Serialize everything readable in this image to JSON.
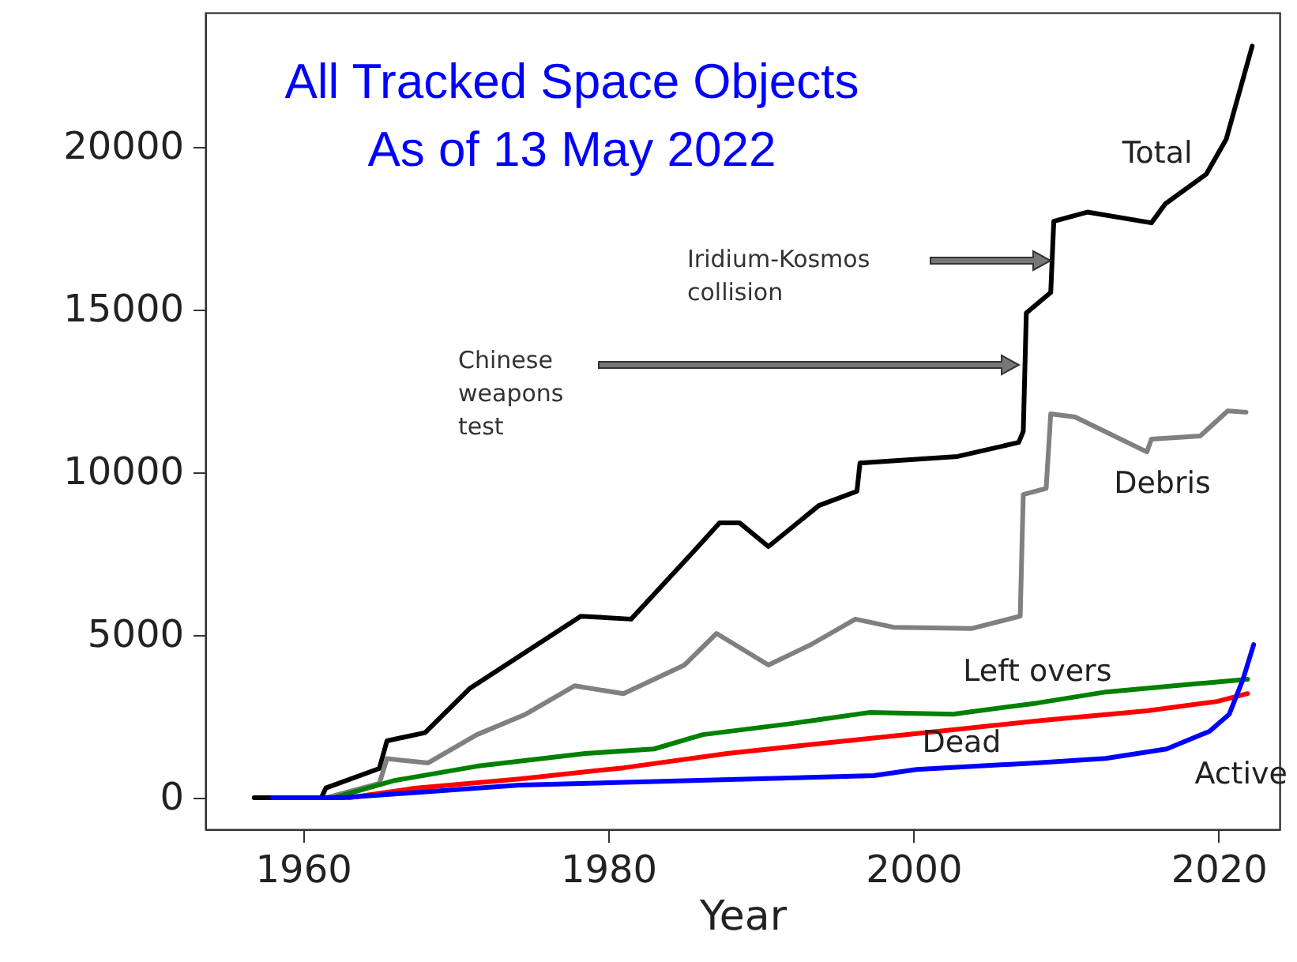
{
  "chart_data": {
    "type": "line",
    "title": "All Tracked Space Objects",
    "subtitle": "As of 13 May 2022",
    "xlabel": "Year",
    "xlim": [
      1953.6,
      2024.0
    ],
    "ylim": [
      -970,
      24130
    ],
    "xticks": [
      1960,
      1980,
      2000,
      2020
    ],
    "yticks": [
      0,
      5000,
      10000,
      15000,
      20000
    ],
    "grid": false,
    "legend": false,
    "series": [
      {
        "name": "Total",
        "color": "#000000",
        "x": [
          1956.8,
          1961.2,
          1961.5,
          1965,
          1965.5,
          1968,
          1970.9,
          1978.2,
          1981.5,
          1985.5,
          1987.3,
          1988.6,
          1990.5,
          1993.8,
          1996.3,
          1996.5,
          2002.9,
          2006.9,
          2007.2,
          2007.4,
          2009.0,
          2009.2,
          2011.4,
          2015.6,
          2016.5,
          2019.2,
          2020.5,
          2022.2
        ],
        "values": [
          0,
          0,
          300,
          900,
          1750,
          2000,
          3350,
          5580,
          5490,
          7520,
          8450,
          8450,
          7720,
          8980,
          9420,
          10290,
          10490,
          10920,
          11260,
          14900,
          15530,
          17720,
          18000,
          17670,
          18250,
          19170,
          20240,
          23100
        ]
      },
      {
        "name": "Debris",
        "color": "#808080",
        "x": [
          1961.5,
          1965,
          1965.5,
          1968.2,
          1971.4,
          1974.6,
          1977.8,
          1981,
          1985,
          1987.1,
          1990.5,
          1993.3,
          1996.2,
          1998.7,
          2003.8,
          2007.0,
          2007.2,
          2008.7,
          2009.0,
          2010.6,
          2015.3,
          2015.6,
          2018.8,
          2020.6,
          2021.8
        ],
        "values": [
          0,
          440,
          1200,
          1070,
          1940,
          2570,
          3440,
          3200,
          4080,
          5050,
          4080,
          4710,
          5490,
          5240,
          5200,
          5580,
          9320,
          9510,
          11800,
          11700,
          10630,
          11020,
          11120,
          11890,
          11850
        ]
      },
      {
        "name": "Left overs",
        "color": "#008000",
        "x": [
          1962,
          1966,
          1971.4,
          1978.5,
          1983,
          1986.2,
          1992,
          1997.1,
          2002.6,
          2008.1,
          2012.6,
          2018.5,
          2021.9
        ],
        "values": [
          0,
          530,
          970,
          1360,
          1500,
          1940,
          2280,
          2620,
          2570,
          2910,
          3250,
          3500,
          3640
        ]
      },
      {
        "name": "Dead",
        "color": "#ff0000",
        "x": [
          1963,
          1967.3,
          1974.2,
          1981,
          1987.8,
          1994.6,
          2001.6,
          2008.5,
          2015.3,
          2019.9,
          2021.9
        ],
        "values": [
          0,
          290,
          580,
          920,
          1360,
          1700,
          2040,
          2380,
          2670,
          2960,
          3200
        ]
      },
      {
        "name": "Active",
        "color": "#0000ff",
        "x": [
          1958,
          1962.6,
          1974.2,
          1985.5,
          1997.4,
          2000.2,
          2008,
          2012.6,
          2016.6,
          2019.4,
          2020.7,
          2021.6,
          2022.3
        ],
        "values": [
          0,
          0,
          390,
          530,
          680,
          870,
          1070,
          1210,
          1500,
          2040,
          2570,
          3640,
          4710
        ]
      }
    ],
    "annotations": [
      "Iridium-Kosmos\ncollision",
      "Chinese\nweapons\ntest"
    ]
  }
}
